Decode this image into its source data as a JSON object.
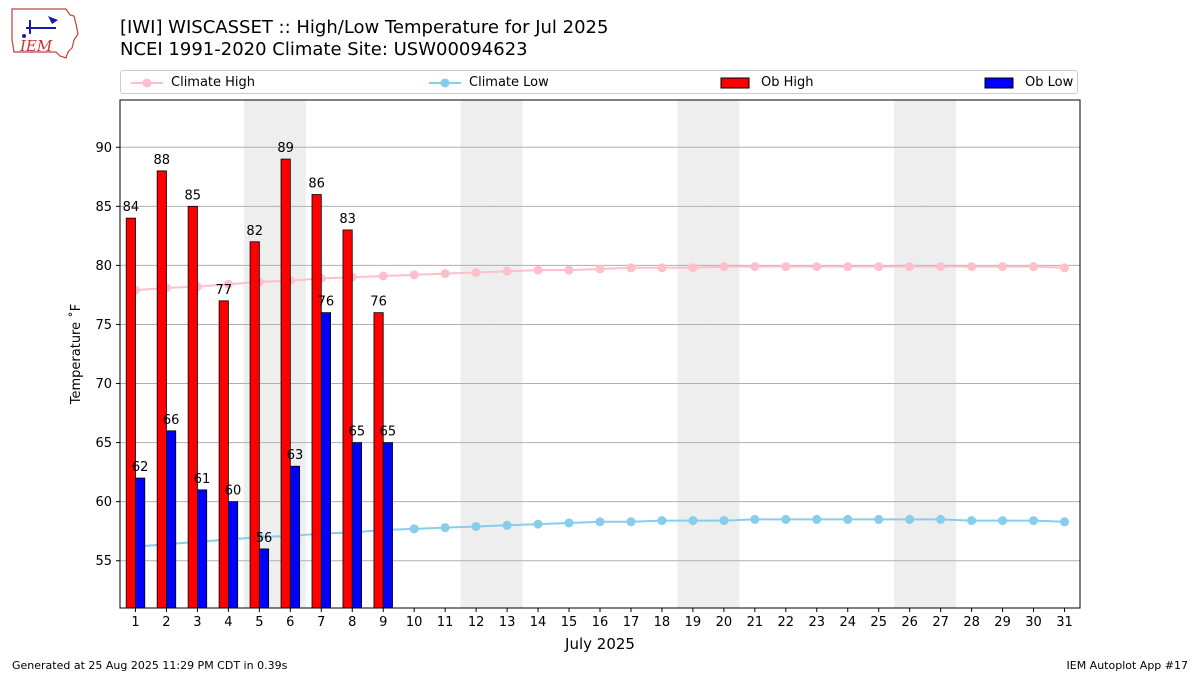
{
  "logo": {
    "text": "IEM"
  },
  "header": {
    "title_line1": "[IWI] WISCASSET :: High/Low Temperature for Jul 2025",
    "title_line2": "NCEI 1991-2020 Climate Site: USW00094623"
  },
  "legend": {
    "climate_high": "Climate High",
    "climate_low": "Climate Low",
    "ob_high": "Ob High",
    "ob_low": "Ob Low"
  },
  "colors": {
    "climate_high": "#ffc0cb",
    "climate_low": "#87ceeb",
    "ob_high": "#ff0000",
    "ob_low": "#0000ff",
    "weekend_shade": "#eeeeee",
    "grid": "#b0b0b0"
  },
  "footer": {
    "generated": "Generated at 25 Aug 2025 11:29 PM CDT in 0.39s",
    "app": "IEM Autoplot App #17"
  },
  "chart_data": {
    "type": "bar",
    "xlabel": "July 2025",
    "ylabel": "Temperature ˚F",
    "ylim": [
      51,
      94
    ],
    "yticks": [
      55,
      60,
      65,
      70,
      75,
      80,
      85,
      90
    ],
    "grid": "horizontal",
    "legend_placement": "top",
    "days": [
      1,
      2,
      3,
      4,
      5,
      6,
      7,
      8,
      9,
      10,
      11,
      12,
      13,
      14,
      15,
      16,
      17,
      18,
      19,
      20,
      21,
      22,
      23,
      24,
      25,
      26,
      27,
      28,
      29,
      30,
      31
    ],
    "shaded_days": [
      5,
      6,
      12,
      13,
      19,
      20,
      26,
      27
    ],
    "series": [
      {
        "name": "Ob High",
        "kind": "bar",
        "values": [
          84,
          88,
          85,
          77,
          82,
          89,
          86,
          83,
          76
        ]
      },
      {
        "name": "Ob Low",
        "kind": "bar",
        "values": [
          62,
          66,
          61,
          60,
          56,
          63,
          76,
          65,
          65
        ]
      },
      {
        "name": "Climate High",
        "kind": "line",
        "values": [
          77.9,
          78.1,
          78.2,
          78.4,
          78.6,
          78.7,
          78.9,
          79.0,
          79.1,
          79.2,
          79.3,
          79.4,
          79.5,
          79.6,
          79.6,
          79.7,
          79.8,
          79.8,
          79.8,
          79.9,
          79.9,
          79.9,
          79.9,
          79.9,
          79.9,
          79.9,
          79.9,
          79.9,
          79.9,
          79.9,
          79.8
        ]
      },
      {
        "name": "Climate Low",
        "kind": "line",
        "values": [
          56.2,
          56.4,
          56.6,
          56.8,
          57.0,
          57.1,
          57.3,
          57.4,
          57.6,
          57.7,
          57.8,
          57.9,
          58.0,
          58.1,
          58.2,
          58.3,
          58.3,
          58.4,
          58.4,
          58.4,
          58.5,
          58.5,
          58.5,
          58.5,
          58.5,
          58.5,
          58.5,
          58.4,
          58.4,
          58.4,
          58.3
        ]
      }
    ]
  }
}
